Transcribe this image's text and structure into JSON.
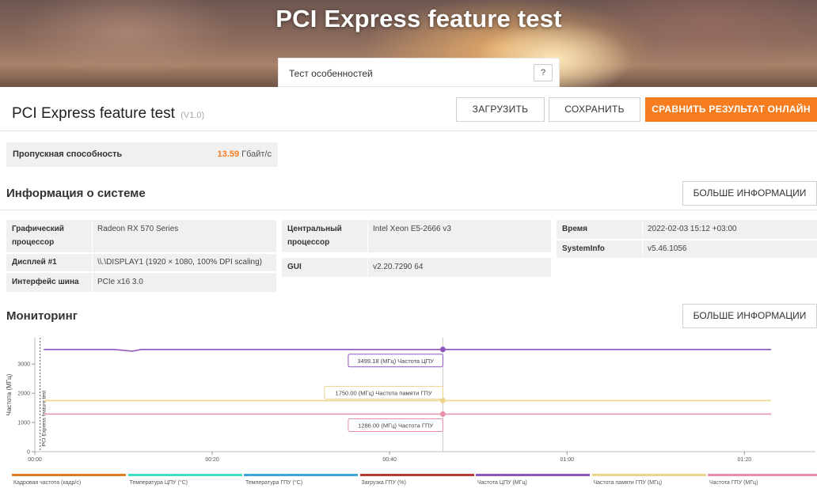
{
  "hero": {
    "title": "PCI Express feature test",
    "search_label": "Тест особенностей",
    "help": "?"
  },
  "header": {
    "title": "PCI Express feature test",
    "version": "(V1.0)",
    "load_label": "ЗАГРУЗИТЬ",
    "save_label": "СОХРАНИТЬ",
    "compare_label": "СРАВНИТЬ РЕЗУЛЬТАТ ОНЛАЙН"
  },
  "score": {
    "label": "Пропускная способность",
    "value": "13.59",
    "unit": "Гбайт/с"
  },
  "system_info": {
    "title": "Информация о системе",
    "more_label": "БОЛЬШЕ ИНФОРМАЦИИ",
    "gpu_label": "Графический процессор",
    "gpu_value": "Radeon RX 570 Series",
    "display_label": "Дисплей #1",
    "display_value": "\\\\.\\DISPLAY1 (1920 × 1080, 100% DPI scaling)",
    "bus_label": "Интерфейс шина",
    "bus_value": "PCIe x16 3.0",
    "cpu_label": "Центральный процессор",
    "cpu_value": "Intel Xeon E5-2666 v3",
    "gui_label": "GUI",
    "gui_value": "v2.20.7290 64",
    "time_label": "Время",
    "time_value": "2022-02-03 15:12 +03:00",
    "sysinfo_label": "SystemInfo",
    "sysinfo_value": "v5.46.1056"
  },
  "monitoring": {
    "title": "Мониторинг",
    "more_label": "БОЛЬШЕ ИНФОРМАЦИИ"
  },
  "chart_data": {
    "type": "line",
    "ylabel": "Частота (МГц)",
    "marker_label": "PCI Express feature test",
    "ylim": [
      0,
      3900
    ],
    "yticks": [
      0,
      1000,
      2000,
      3000
    ],
    "xlim": [
      0,
      88
    ],
    "xticks": [
      {
        "value": 0,
        "label": "00:00"
      },
      {
        "value": 20,
        "label": "00:20"
      },
      {
        "value": 40,
        "label": "00:40"
      },
      {
        "value": 60,
        "label": "01:00"
      },
      {
        "value": 80,
        "label": "01:20"
      }
    ],
    "x_end": 83,
    "cursor_x": 46,
    "series": [
      {
        "name": "Частота ЦПУ",
        "color": "#8e55bd",
        "value": 3499.18,
        "tooltip": "3499.18 (МГц) Частота ЦПУ",
        "dip": {
          "x": [
            9,
            10,
            11,
            12
          ],
          "y": [
            3499.18,
            3470,
            3440,
            3499.18
          ]
        }
      },
      {
        "name": "Частота памяти ГПУ",
        "color": "#ecd58a",
        "value": 1750.0,
        "tooltip": "1750.00 (МГц) Частота памяти ГПУ"
      },
      {
        "name": "Частота ГПУ",
        "color": "#e98fa8",
        "value": 1286.0,
        "tooltip": "1286.00 (МГц) Частота ГПУ"
      }
    ],
    "legend": [
      {
        "name": "Кадровая частота (кадр/с)",
        "color": "#e07b22"
      },
      {
        "name": "Температура ЦПУ (°C)",
        "color": "#3fe0c5"
      },
      {
        "name": "Температура ГПУ (°C)",
        "color": "#3aa5d8"
      },
      {
        "name": "Загрузка ГПУ (%)",
        "color": "#b83a33"
      },
      {
        "name": "Частота ЦПУ (МГц)",
        "color": "#8e55bd"
      },
      {
        "name": "Частота памяти ГПУ (МГц)",
        "color": "#ecd58a"
      },
      {
        "name": "Частота ГПУ (МГц)",
        "color": "#e98fa8"
      }
    ]
  }
}
